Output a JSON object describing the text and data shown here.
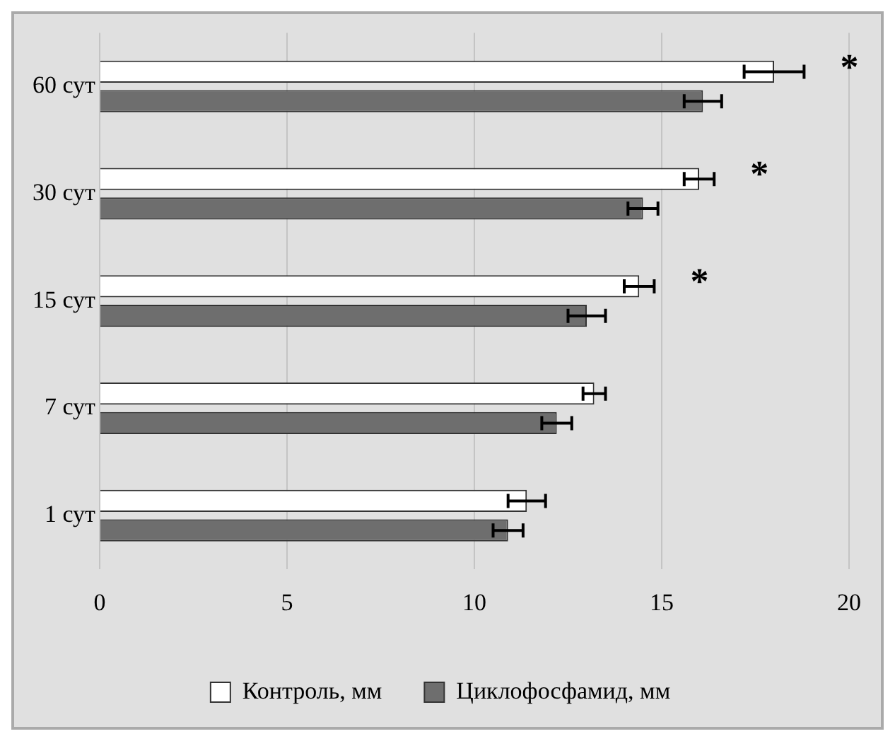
{
  "chart_data": {
    "type": "bar",
    "orientation": "horizontal",
    "categories": [
      "60 сут",
      "30 сут",
      "15 сут",
      "7 сут",
      "1 сут"
    ],
    "series": [
      {
        "name": "Контроль, мм",
        "color": "#ffffff",
        "values": [
          18.0,
          16.0,
          14.4,
          13.2,
          11.4
        ],
        "errors": [
          0.8,
          0.4,
          0.4,
          0.3,
          0.5
        ]
      },
      {
        "name": "Циклофосфамид, мм",
        "color": "#6e6e6e",
        "values": [
          16.1,
          14.5,
          13.0,
          12.2,
          10.9
        ],
        "errors": [
          0.5,
          0.4,
          0.5,
          0.4,
          0.4
        ]
      }
    ],
    "xlim": [
      0,
      20
    ],
    "xticks": [
      0,
      5,
      10,
      15,
      20
    ],
    "grid": "x",
    "legend": "bottom",
    "annotations": [
      "*",
      "*",
      "*"
    ]
  }
}
